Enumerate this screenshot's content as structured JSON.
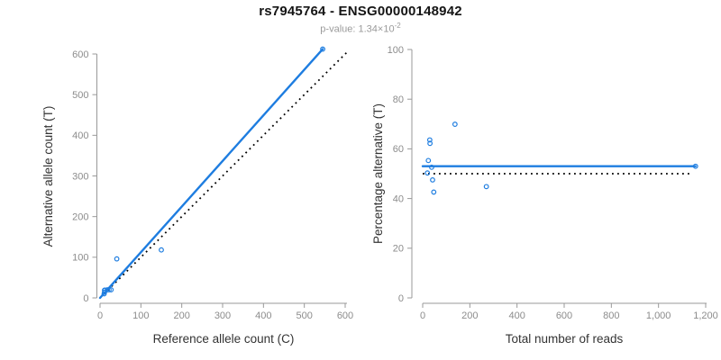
{
  "header": {
    "title": "rs7945764 - ENSG00000148942",
    "pvalue_prefix": "p-value: 1.34×10",
    "pvalue_exponent": "-2"
  },
  "colors": {
    "accent_blue": "#1e7de0",
    "identity_black": "#000000",
    "axis_gray": "#999999",
    "tick_label_gray": "#8c8c8c",
    "axis_title_dark": "#333333"
  },
  "chart_data": [
    {
      "type": "scatter",
      "name": "allele-counts",
      "xlabel": "Reference allele count (C)",
      "ylabel": "Alternative allele count (T)",
      "xlim": [
        0,
        600
      ],
      "ylim": [
        0,
        600
      ],
      "xticks": [
        0,
        100,
        200,
        300,
        400,
        500,
        600
      ],
      "xtick_labels": [
        "0",
        "100",
        "200",
        "300",
        "400",
        "500",
        "600"
      ],
      "yticks": [
        0,
        100,
        200,
        300,
        400,
        500,
        600
      ],
      "ytick_labels": [
        "0",
        "100",
        "200",
        "300",
        "400",
        "500",
        "600"
      ],
      "grid": false,
      "legend": false,
      "points": [
        [
          10,
          10
        ],
        [
          11,
          19
        ],
        [
          12,
          19
        ],
        [
          11,
          14
        ],
        [
          18,
          20
        ],
        [
          22,
          20
        ],
        [
          27,
          20
        ],
        [
          41,
          96
        ],
        [
          150,
          118
        ],
        [
          545,
          612
        ]
      ],
      "regression_line": {
        "x": [
          0,
          545
        ],
        "y": [
          0,
          612
        ],
        "style": "solid"
      },
      "identity_line": {
        "x": [
          0,
          608
        ],
        "y": [
          0,
          608
        ],
        "style": "dotted"
      }
    },
    {
      "type": "scatter",
      "name": "percentage-vs-reads",
      "xlabel": "Total number of reads",
      "ylabel": "Percentage alternative (T)",
      "xlim": [
        0,
        1200
      ],
      "ylim": [
        0,
        100
      ],
      "xticks": [
        0,
        200,
        400,
        600,
        800,
        1000,
        1200
      ],
      "xtick_labels": [
        "0",
        "200",
        "400",
        "600",
        "800",
        "1,000",
        "1,200"
      ],
      "yticks": [
        0,
        20,
        40,
        60,
        80,
        100
      ],
      "ytick_labels": [
        "0",
        "20",
        "40",
        "60",
        "80",
        "100"
      ],
      "grid": false,
      "legend": false,
      "points": [
        [
          20,
          50.3
        ],
        [
          30,
          63.6
        ],
        [
          31,
          62.2
        ],
        [
          24,
          55.3
        ],
        [
          38,
          52.6
        ],
        [
          42,
          47.5
        ],
        [
          47,
          42.6
        ],
        [
          137,
          69.9
        ],
        [
          270,
          44.8
        ],
        [
          1157,
          53.0
        ]
      ],
      "regression_line": {
        "x": [
          0,
          1157
        ],
        "y": [
          53.0,
          53.0
        ],
        "style": "solid"
      },
      "identity_line": {
        "x": [
          0,
          1145
        ],
        "y": [
          50,
          50
        ],
        "style": "dotted"
      }
    }
  ]
}
